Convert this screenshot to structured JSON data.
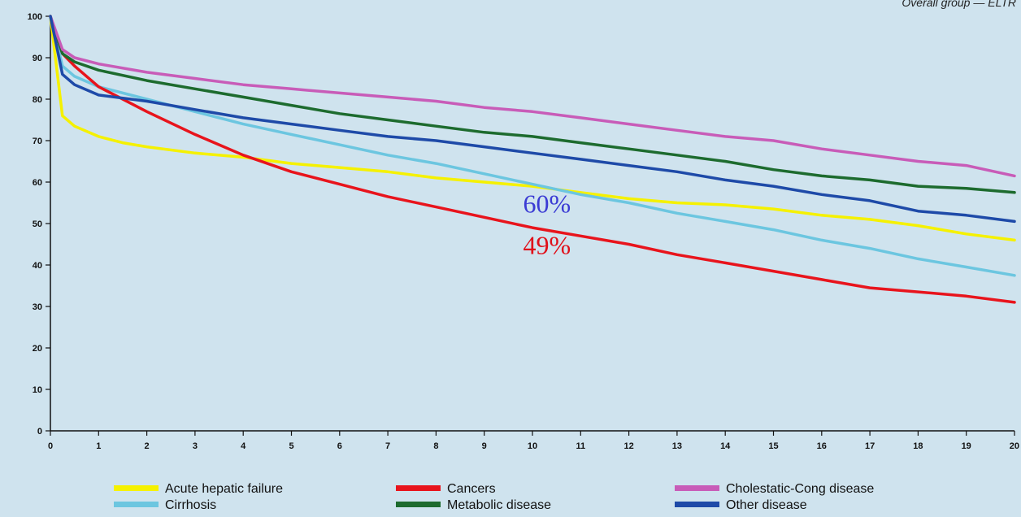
{
  "chart_data": {
    "type": "line",
    "header_text": "Overall group — ELTR",
    "xlim": [
      0,
      20
    ],
    "ylim": [
      0,
      100
    ],
    "x_ticks": [
      "0",
      "1",
      "2",
      "3",
      "4",
      "5",
      "6",
      "7",
      "8",
      "9",
      "10",
      "11",
      "12",
      "13",
      "14",
      "15",
      "16",
      "17",
      "18",
      "19",
      "20"
    ],
    "y_ticks": [
      "0",
      "10",
      "20",
      "30",
      "40",
      "50",
      "60",
      "70",
      "80",
      "90",
      "100"
    ],
    "grid": false,
    "legend_position": "bottom",
    "series": [
      {
        "name": "Acute hepatic failure",
        "color": "#f5f100",
        "x": [
          0,
          0.25,
          0.5,
          1,
          1.5,
          2,
          3,
          4,
          5,
          6,
          7,
          8,
          9,
          10,
          11,
          12,
          13,
          14,
          15,
          16,
          17,
          18,
          19,
          20
        ],
        "y": [
          100,
          76,
          73.5,
          71,
          69.5,
          68.5,
          67,
          66,
          64.5,
          63.5,
          62.5,
          61,
          60,
          59,
          57.5,
          56,
          55,
          54.5,
          53.5,
          52,
          51,
          49.5,
          47.5,
          46
        ]
      },
      {
        "name": "Cirrhosis",
        "color": "#6cc6e0",
        "x": [
          0,
          0.25,
          0.5,
          1,
          2,
          3,
          4,
          5,
          6,
          7,
          8,
          9,
          10,
          11,
          12,
          13,
          14,
          15,
          16,
          17,
          18,
          19,
          20
        ],
        "y": [
          100,
          88,
          85.5,
          83,
          80,
          77,
          74,
          71.5,
          69,
          66.5,
          64.5,
          62,
          59.5,
          57,
          55,
          52.5,
          50.5,
          48.5,
          46,
          44,
          41.5,
          39.5,
          37.5
        ]
      },
      {
        "name": "Cancers",
        "color": "#e8141c",
        "x": [
          0,
          0.25,
          0.5,
          1,
          2,
          3,
          4,
          5,
          6,
          7,
          8,
          9,
          10,
          11,
          12,
          13,
          14,
          15,
          16,
          17,
          18,
          19,
          20
        ],
        "y": [
          100,
          91,
          88,
          83,
          77,
          71.5,
          66.5,
          62.5,
          59.5,
          56.5,
          54,
          51.5,
          49,
          47,
          45,
          42.5,
          40.5,
          38.5,
          36.5,
          34.5,
          33.5,
          32.5,
          31
        ]
      },
      {
        "name": "Metabolic disease",
        "color": "#1d6b2e",
        "x": [
          0,
          0.25,
          0.5,
          1,
          2,
          3,
          4,
          5,
          6,
          7,
          8,
          9,
          10,
          11,
          12,
          13,
          14,
          15,
          16,
          17,
          18,
          19,
          20
        ],
        "y": [
          100,
          91,
          89,
          87,
          84.5,
          82.5,
          80.5,
          78.5,
          76.5,
          75,
          73.5,
          72,
          71,
          69.5,
          68,
          66.5,
          65,
          63,
          61.5,
          60.5,
          59,
          58.5,
          57.5
        ]
      },
      {
        "name": "Cholestatic-Cong disease",
        "color": "#c85cb8",
        "x": [
          0,
          0.25,
          0.5,
          1,
          2,
          3,
          4,
          5,
          6,
          7,
          8,
          9,
          10,
          11,
          12,
          13,
          14,
          15,
          16,
          17,
          18,
          19,
          20
        ],
        "y": [
          100,
          92,
          90,
          88.5,
          86.5,
          85,
          83.5,
          82.5,
          81.5,
          80.5,
          79.5,
          78,
          77,
          75.5,
          74,
          72.5,
          71,
          70,
          68,
          66.5,
          65,
          64,
          61.5
        ]
      },
      {
        "name": "Other disease",
        "color": "#1e4aa8",
        "x": [
          0,
          0.25,
          0.5,
          1,
          2,
          3,
          4,
          5,
          6,
          7,
          8,
          9,
          10,
          11,
          12,
          13,
          14,
          15,
          16,
          17,
          18,
          19,
          20
        ],
        "y": [
          100,
          86,
          83.5,
          81,
          79.5,
          77.5,
          75.5,
          74,
          72.5,
          71,
          70,
          68.5,
          67,
          65.5,
          64,
          62.5,
          60.5,
          59,
          57,
          55.5,
          53,
          52,
          50.5
        ]
      }
    ],
    "annotations": [
      {
        "text": "60%",
        "color": "#3b3bd4",
        "x": 10.3,
        "y": 55
      },
      {
        "text": "49%",
        "color": "#e0101a",
        "x": 10.3,
        "y": 45
      }
    ]
  }
}
